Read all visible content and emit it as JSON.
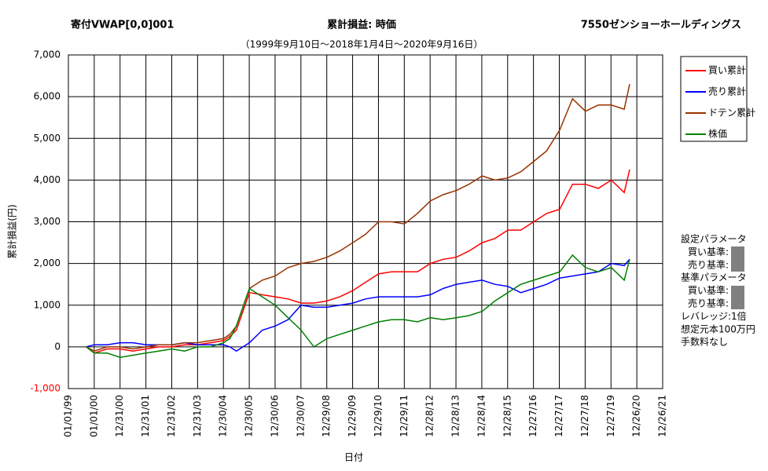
{
  "chart_data": {
    "type": "line",
    "title": "累計損益: 時価",
    "title_left": "寄付VWAP[0,0]001",
    "title_right": "7550ゼンショーホールディングス",
    "subtitle": "（1999年9月10日～2018年1月4日～2020年9月16日）",
    "y_label": "累計損益(円)",
    "x_label": "日付",
    "x": [
      "09/10/99",
      "01/01/00",
      "07/01/00",
      "01/01/01",
      "07/01/01",
      "01/01/02",
      "07/01/02",
      "01/01/03",
      "07/01/03",
      "01/01/04",
      "07/01/04",
      "01/01/05",
      "04/01/05",
      "07/01/05",
      "01/01/06",
      "07/01/06",
      "01/01/07",
      "07/01/07",
      "01/01/08",
      "07/01/08",
      "01/01/09",
      "07/01/09",
      "01/01/10",
      "07/01/10",
      "01/01/11",
      "07/01/11",
      "01/01/12",
      "07/01/12",
      "01/01/13",
      "07/01/13",
      "01/01/14",
      "07/01/14",
      "01/01/15",
      "07/01/15",
      "01/01/16",
      "07/01/16",
      "01/01/17",
      "07/01/17",
      "01/01/18",
      "07/01/18",
      "01/01/19",
      "07/01/19",
      "01/01/20",
      "07/01/20",
      "09/16/20"
    ],
    "series": [
      {
        "name": "買い累計",
        "color": "#ff0000",
        "values": [
          0,
          -150,
          -50,
          -50,
          -100,
          -50,
          0,
          0,
          50,
          50,
          100,
          150,
          250,
          400,
          1300,
          1250,
          1200,
          1150,
          1050,
          1050,
          1100,
          1200,
          1350,
          1550,
          1750,
          1800,
          1800,
          1800,
          2000,
          2100,
          2150,
          2300,
          2500,
          2600,
          2800,
          2800,
          3000,
          3200,
          3300,
          3900,
          3900,
          3800,
          4000,
          3700,
          4250
        ]
      },
      {
        "name": "売り累計",
        "color": "#0000ff",
        "values": [
          0,
          50,
          50,
          100,
          100,
          50,
          50,
          50,
          100,
          50,
          50,
          50,
          0,
          -100,
          100,
          400,
          500,
          650,
          1000,
          950,
          950,
          1000,
          1050,
          1150,
          1200,
          1200,
          1200,
          1200,
          1250,
          1400,
          1500,
          1550,
          1600,
          1500,
          1450,
          1300,
          1400,
          1500,
          1650,
          1700,
          1750,
          1800,
          2000,
          1950,
          2100
        ]
      },
      {
        "name": "ドテン累計",
        "color": "#993300",
        "values": [
          0,
          -100,
          0,
          0,
          -50,
          0,
          50,
          50,
          100,
          100,
          150,
          200,
          300,
          500,
          1400,
          1600,
          1700,
          1900,
          2000,
          2050,
          2150,
          2300,
          2500,
          2700,
          3000,
          3000,
          2950,
          3200,
          3500,
          3650,
          3750,
          3900,
          4100,
          4000,
          4050,
          4200,
          4450,
          4700,
          5200,
          5950,
          5650,
          5800,
          5800,
          5700,
          6300
        ]
      },
      {
        "name": "株価",
        "color": "#008000",
        "values": [
          0,
          -150,
          -150,
          -250,
          -200,
          -150,
          -100,
          -50,
          -100,
          0,
          0,
          100,
          200,
          500,
          1400,
          1200,
          1000,
          700,
          400,
          0,
          200,
          300,
          400,
          500,
          600,
          650,
          650,
          600,
          700,
          650,
          700,
          750,
          850,
          1100,
          1300,
          1500,
          1600,
          1700,
          1800,
          2200,
          1900,
          1800,
          1900,
          1600,
          2100
        ]
      }
    ],
    "ylim": [
      -1000,
      7000
    ],
    "yticks": [
      {
        "value": -1000,
        "label": "-1,000"
      },
      0,
      {
        "value": 1000,
        "label": "1,000"
      },
      {
        "value": 2000,
        "label": "2,000"
      },
      {
        "value": 3000,
        "label": "3,000"
      },
      {
        "value": 4000,
        "label": "4,000"
      },
      {
        "value": 5000,
        "label": "5,000"
      },
      {
        "value": 6000,
        "label": "6,000"
      },
      {
        "value": 7000,
        "label": "7,000"
      }
    ],
    "xlim": [
      "01/01/99",
      "12/26/21"
    ],
    "xticks": [
      "01/01/99",
      "01/01/00",
      "12/31/00",
      "12/31/01",
      "12/31/02",
      "12/31/03",
      "12/30/04",
      "12/30/05",
      "12/30/06",
      "12/30/07",
      "12/29/08",
      "12/29/09",
      "12/29/10",
      "12/29/11",
      "12/28/12",
      "12/28/13",
      "12/28/14",
      "12/28/15",
      "12/27/16",
      "12/27/17",
      "12/27/18",
      "12/27/19",
      "12/26/20",
      "12/26/21"
    ],
    "grid": true,
    "legend": "right"
  },
  "panel": {
    "items": [
      "設定パラメータ",
      "買い基準:",
      "売り基準:",
      "基準パラメータ",
      "買い基準:",
      "売り基準:",
      "レバレッジ:1倍",
      "想定元本100万円",
      "手数料なし"
    ]
  }
}
